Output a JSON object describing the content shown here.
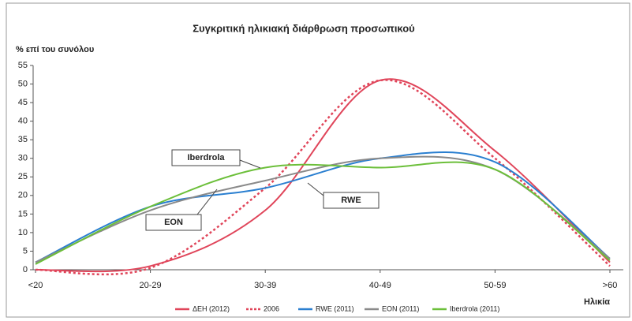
{
  "chart_data": {
    "type": "line",
    "title": "Συγκριτική ηλικιακή διάρθρωση προσωπικού",
    "y_label": "% επί του συνόλου",
    "x_label": "Ηλικία",
    "categories": [
      "<20",
      "20-29",
      "30-39",
      "40-49",
      "50-59",
      ">60"
    ],
    "ylim": [
      0,
      55
    ],
    "yticks": [
      0,
      5,
      10,
      15,
      20,
      25,
      30,
      35,
      40,
      45,
      50,
      55
    ],
    "grid": false,
    "series": [
      {
        "name": "ΔΕΗ (2012)",
        "color": "#e0455a",
        "dashed": false,
        "values": [
          0,
          1,
          16,
          51,
          32,
          2
        ]
      },
      {
        "name": "2006",
        "color": "#e0455a",
        "dashed": true,
        "values": [
          0,
          0.5,
          22,
          51,
          30,
          1
        ]
      },
      {
        "name": "RWE (2011)",
        "color": "#2a7fd0",
        "dashed": false,
        "values": [
          2,
          17,
          22,
          30,
          29,
          3
        ]
      },
      {
        "name": "EON (2011)",
        "color": "#8a8a8a",
        "dashed": false,
        "values": [
          2,
          16,
          24,
          30,
          27,
          3
        ]
      },
      {
        "name": "Iberdrola (2011)",
        "color": "#6cbf3a",
        "dashed": false,
        "values": [
          1.5,
          17,
          27.5,
          27.5,
          27,
          2.5
        ]
      }
    ],
    "annotations": [
      "Iberdrola",
      "RWE",
      "EON"
    ]
  }
}
